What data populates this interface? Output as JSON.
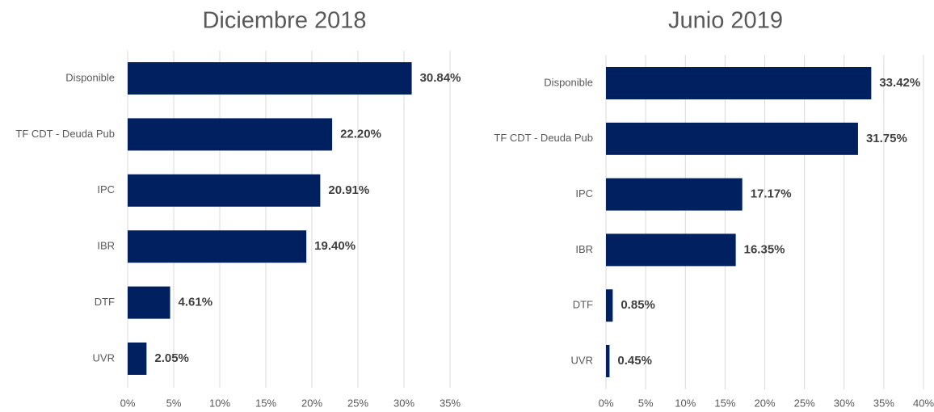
{
  "chart_data": [
    {
      "type": "barh",
      "title": "Diciembre 2018",
      "categories": [
        "Disponible",
        "TF CDT - Deuda Pub",
        "IPC",
        "IBR",
        "DTF",
        "UVR"
      ],
      "values": [
        30.84,
        22.2,
        20.91,
        19.4,
        4.61,
        2.05
      ],
      "value_labels": [
        "30.84%",
        "22.20%",
        "20.91%",
        "19.40%",
        "4.61%",
        "2.05%"
      ],
      "color": "#002060",
      "grid": true,
      "xlim": [
        0,
        35
      ],
      "xticks": [
        {
          "value": 0,
          "label": "0%"
        },
        {
          "value": 5,
          "label": "5%"
        },
        {
          "value": 10,
          "label": "10%"
        },
        {
          "value": 15,
          "label": "15%"
        },
        {
          "value": 20,
          "label": "20%"
        },
        {
          "value": 25,
          "label": "25%"
        },
        {
          "value": 30,
          "label": "30%"
        },
        {
          "value": 35,
          "label": "35%"
        }
      ]
    },
    {
      "type": "barh",
      "title": "Junio 2019",
      "categories": [
        "Disponible",
        "TF CDT - Deuda Pub",
        "IPC",
        "IBR",
        "DTF",
        "UVR"
      ],
      "values": [
        33.42,
        31.75,
        17.17,
        16.35,
        0.85,
        0.45
      ],
      "value_labels": [
        "33.42%",
        "31.75%",
        "17.17%",
        "16.35%",
        "0.85%",
        "0.45%"
      ],
      "color": "#002060",
      "grid": true,
      "xlim": [
        0,
        40
      ],
      "xticks": [
        {
          "value": 0,
          "label": "0%"
        },
        {
          "value": 5,
          "label": "5%"
        },
        {
          "value": 10,
          "label": "10%"
        },
        {
          "value": 15,
          "label": "15%"
        },
        {
          "value": 20,
          "label": "20%"
        },
        {
          "value": 25,
          "label": "25%"
        },
        {
          "value": 30,
          "label": "30%"
        },
        {
          "value": 35,
          "label": "35%"
        },
        {
          "value": 40,
          "label": "40%"
        }
      ]
    }
  ]
}
